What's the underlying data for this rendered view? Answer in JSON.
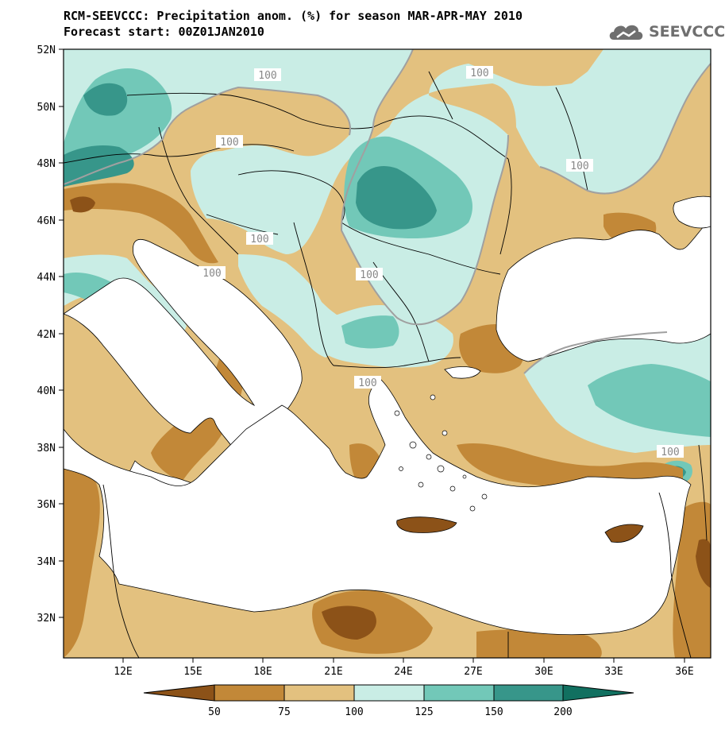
{
  "title_line1": "RCM-SEEVCCC: Precipitation anom. (%) for season MAR-APR-MAY 2010",
  "title_line2": "Forecast start: 00Z01JAN2010",
  "logo_text": "SEEVCCC",
  "lat_labels": [
    "52N",
    "50N",
    "48N",
    "46N",
    "44N",
    "42N",
    "40N",
    "38N",
    "36N",
    "34N",
    "32N"
  ],
  "lon_labels": [
    "12E",
    "15E",
    "18E",
    "21E",
    "24E",
    "27E",
    "30E",
    "33E",
    "36E"
  ],
  "contour_label": "100",
  "legend": {
    "ticks": [
      "50",
      "75",
      "100",
      "125",
      "150",
      "200"
    ],
    "colors": [
      "#8c5218",
      "#c28838",
      "#e3c17f",
      "#c9ede5",
      "#72c8b8",
      "#37968a",
      "#117060"
    ]
  }
}
